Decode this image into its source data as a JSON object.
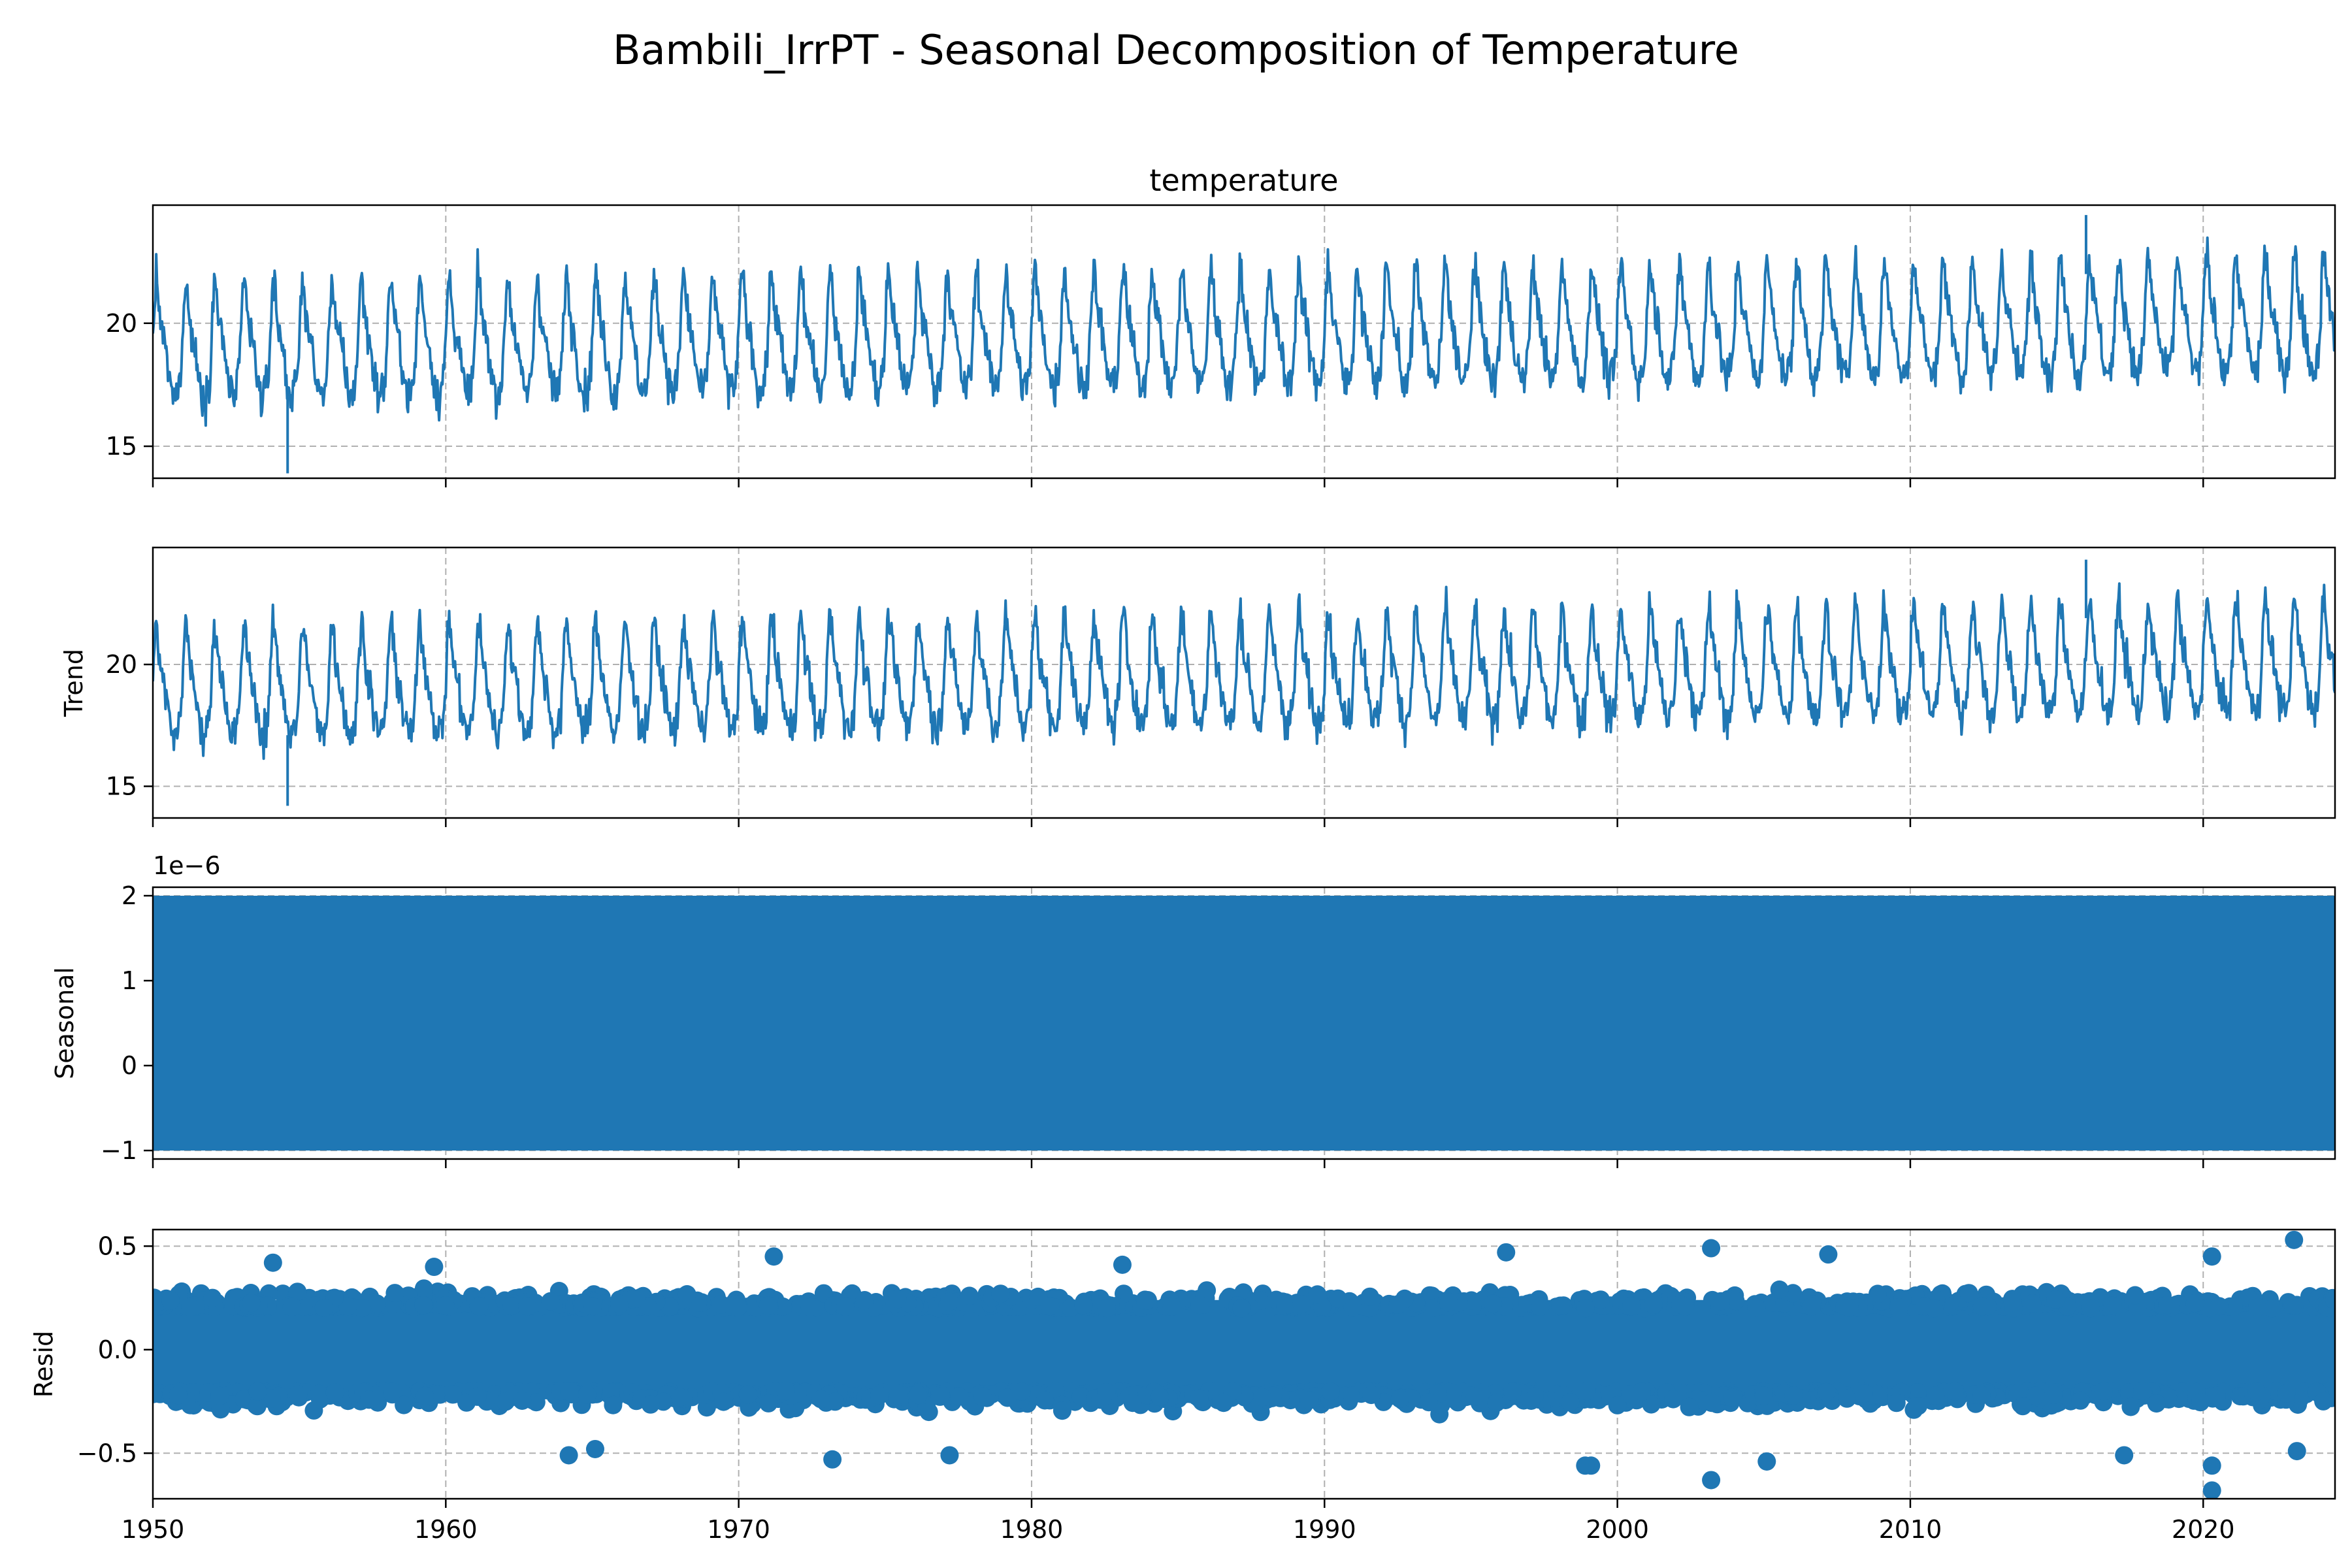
{
  "chart_data": [
    {
      "type": "line",
      "title": "temperature",
      "ylabel": "",
      "x_range": [
        1950,
        2024.5
      ],
      "ylim": [
        13.7,
        24.8
      ],
      "y_ticks": [
        15,
        20
      ],
      "grid": true,
      "color": "#1f77b4",
      "series": [
        {
          "summary": {
            "mean_level": 18.7,
            "seasonal_low": 17.0,
            "seasonal_high": 22.0,
            "min": 13.9,
            "max": 24.4,
            "upward_drift_per_decade": 0.15
          }
        }
      ]
    },
    {
      "type": "line",
      "title": "",
      "ylabel": "Trend",
      "x_range": [
        1950,
        2024.5
      ],
      "ylim": [
        13.7,
        24.8
      ],
      "y_ticks": [
        15,
        20
      ],
      "grid": true,
      "color": "#1f77b4",
      "series": [
        {
          "summary": {
            "mean_level": 18.7,
            "seasonal_low": 17.1,
            "seasonal_high": 21.9,
            "min": 14.2,
            "max": 24.3,
            "upward_drift_per_decade": 0.15
          }
        }
      ]
    },
    {
      "type": "area",
      "title": "",
      "ylabel": "Seasonal",
      "scale_label": "1e−6",
      "x_range": [
        1950,
        2024.5
      ],
      "ylim": [
        -1.1,
        2.1
      ],
      "y_ticks": [
        -1,
        0,
        1,
        2
      ],
      "tick_labels": [
        "−1",
        "0",
        "1",
        "2"
      ],
      "grid": true,
      "color": "#1f77b4",
      "series": [
        {
          "band_low": -1.0,
          "band_high": 2.0
        }
      ]
    },
    {
      "type": "scatter",
      "title": "",
      "ylabel": "Resid",
      "x_range": [
        1950,
        2024.5
      ],
      "ylim": [
        -0.72,
        0.58
      ],
      "y_ticks": [
        -0.5,
        0.0,
        0.5
      ],
      "tick_labels": [
        "−0.5",
        "0.0",
        "0.5"
      ],
      "grid": true,
      "color": "#1f77b4",
      "series": [
        {
          "summary": {
            "typical_low": -0.3,
            "typical_high": 0.3,
            "min": -0.68,
            "max": 0.53
          },
          "outliers": [
            {
              "x": 2023.1,
              "y": 0.53
            },
            {
              "x": 2003.2,
              "y": 0.49
            },
            {
              "x": 1996.2,
              "y": 0.47
            },
            {
              "x": 2007.2,
              "y": 0.46
            },
            {
              "x": 1971.2,
              "y": 0.45
            },
            {
              "x": 2020.3,
              "y": 0.45
            },
            {
              "x": 1954.1,
              "y": 0.42
            },
            {
              "x": 1983.1,
              "y": 0.41
            },
            {
              "x": 1959.6,
              "y": 0.4
            },
            {
              "x": 2003.2,
              "y": -0.63
            },
            {
              "x": 2020.3,
              "y": -0.68
            },
            {
              "x": 2020.3,
              "y": -0.56
            },
            {
              "x": 1999.1,
              "y": -0.56
            },
            {
              "x": 1998.9,
              "y": -0.56
            },
            {
              "x": 2005.1,
              "y": -0.54
            },
            {
              "x": 1973.2,
              "y": -0.53
            },
            {
              "x": 1977.2,
              "y": -0.51
            },
            {
              "x": 1964.2,
              "y": -0.51
            },
            {
              "x": 2017.3,
              "y": -0.51
            },
            {
              "x": 1965.1,
              "y": -0.48
            },
            {
              "x": 2023.2,
              "y": -0.49
            }
          ]
        }
      ]
    }
  ],
  "figure": {
    "suptitle": "Bambili_IrrPT - Seasonal Decomposition of Temperature",
    "x_ticks": [
      1950,
      1960,
      1970,
      1980,
      1990,
      2000,
      2010,
      2020
    ],
    "x_tick_labels": [
      "1950",
      "1960",
      "1970",
      "1980",
      "1990",
      "2000",
      "2010",
      "2020"
    ],
    "line_color": "#1f77b4",
    "grid_color": "#b0b0b0"
  }
}
